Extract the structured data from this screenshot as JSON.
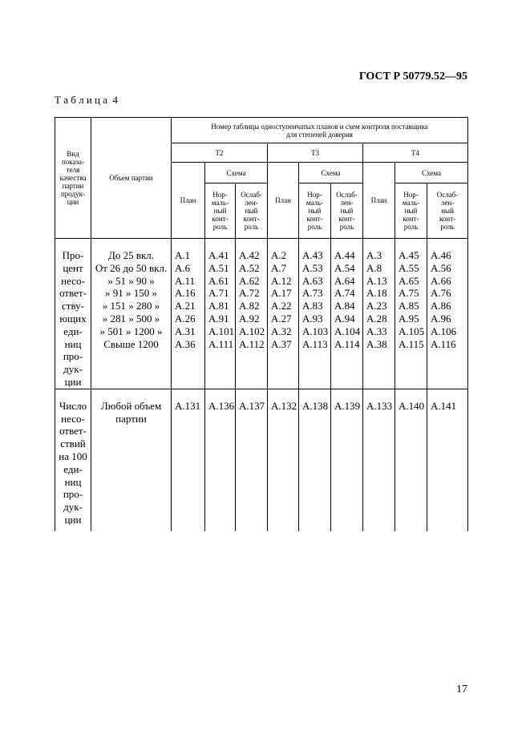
{
  "header": {
    "doc_id": "ГОСТ Р 50779.52—95",
    "table_label": "Т а б л и ц а  4",
    "page_number": "17"
  },
  "table": {
    "col_headers": {
      "kind": "Вид\nпоказа-\nтеля\nкачества\nпартии\nпродук-\nции",
      "volume": "Объем партии",
      "group": "Номер таблицы одноступенчатых планов и схем контроля поставщика\nдля степеней доверия",
      "levels": [
        "Т2",
        "Т3",
        "Т4"
      ],
      "scheme": [
        "Схема",
        "Схема",
        "Схема"
      ],
      "plan": [
        "План",
        "План",
        "План"
      ],
      "normal": [
        "Нор-\nмаль-\nный\nконт-\nроль",
        "Нор-\nмаль-\nный\nконт-\nроль",
        "Нор-\nмаль-\nный\nконт-\nроль"
      ],
      "weakened": [
        "Ослаб-\nлен-\nный\nконт-\nроль",
        "Ослаб-\nлен-\nный\nконт-\nроль",
        "Ослаб-\nлен-\nный\nконт-\nроль"
      ]
    },
    "rows": [
      {
        "kind": "Про-\nцент\nнесо-\nответ-\nству-\nющих\nеди-\nниц\nпро-\nдук-\nции",
        "volume": "До 25 вкл.\nОт 26 до 50 вкл.\n»  51 »   90 »\n»  91 »  150 »\n» 151 »  280 »\n» 281 »  500 »\n» 501 » 1200 »\nСвыше 1200",
        "cells": [
          "А.1\nА.6\nА.11\nА.16\nА.21\nА.26\nА.31\nА.36",
          "А.41\nА.51\nА.61\nА.71\nА.81\nА.91\nА.101\nА.111",
          "А.42\nА.52\nА.62\nА.72\nА.82\nА.92\nА.102\nА.112",
          "А.2\nА.7\nА.12\nА.17\nА.22\nА.27\nА.32\nА.37",
          "А.43\nА.53\nА.63\nА.73\nА.83\nА.93\nА.103\nА.113",
          "А.44\nА.54\nА.64\nА.74\nА.84\nА.94\nА.104\nА.114",
          "А.3\nА.8\nА.13\nА.18\nА.23\nА.28\nА.33\nА.38",
          "А.45\nА.55\nА.65\nА.75\nА.85\nА.95\nА.105\nА.115",
          "А.46\nА.56\nА.66\nА.76\nА.86\nА.96\nА.106\nА.116"
        ]
      },
      {
        "kind": "Число\nнесо-\nответ-\nствий\nна 100\nеди-\nниц\nпро-\nдук-\nции",
        "volume": "Любой объем\nпартии",
        "cells": [
          "А.131",
          "А.136",
          "А.137",
          "А.132",
          "А.138",
          "А.139",
          "А.133",
          "А.140",
          "А.141"
        ]
      }
    ]
  }
}
